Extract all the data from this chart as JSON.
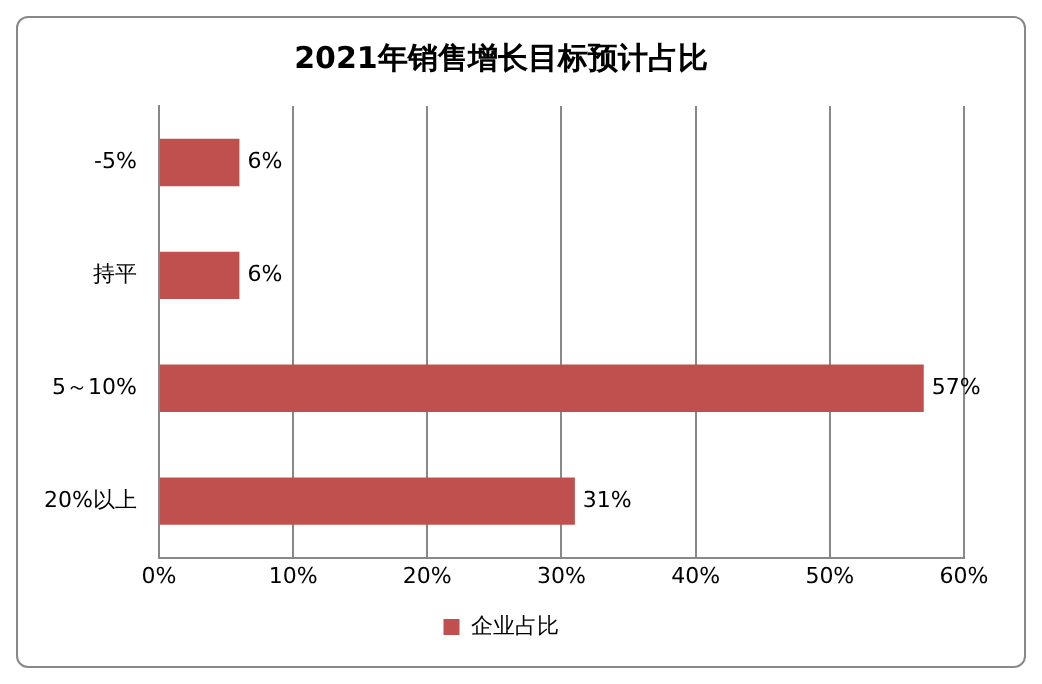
{
  "chart_data": {
    "type": "bar",
    "orientation": "horizontal",
    "title": "2021年销售增长目标预计占比",
    "categories": [
      "-5%",
      "持平",
      "5～10%",
      "20%以上"
    ],
    "series": [
      {
        "name": "企业占比",
        "color": "#c0504d",
        "values": [
          6,
          6,
          57,
          31
        ],
        "value_labels": [
          "6%",
          "6%",
          "57%",
          "31%"
        ]
      }
    ],
    "xlim": [
      0,
      60
    ],
    "xticks": [
      {
        "value": 0,
        "label": "0%"
      },
      {
        "value": 10,
        "label": "10%"
      },
      {
        "value": 20,
        "label": "20%"
      },
      {
        "value": 30,
        "label": "30%"
      },
      {
        "value": 40,
        "label": "40%"
      },
      {
        "value": 50,
        "label": "50%"
      },
      {
        "value": 60,
        "label": "60%"
      }
    ],
    "grid": "x",
    "legend": "bottom"
  }
}
